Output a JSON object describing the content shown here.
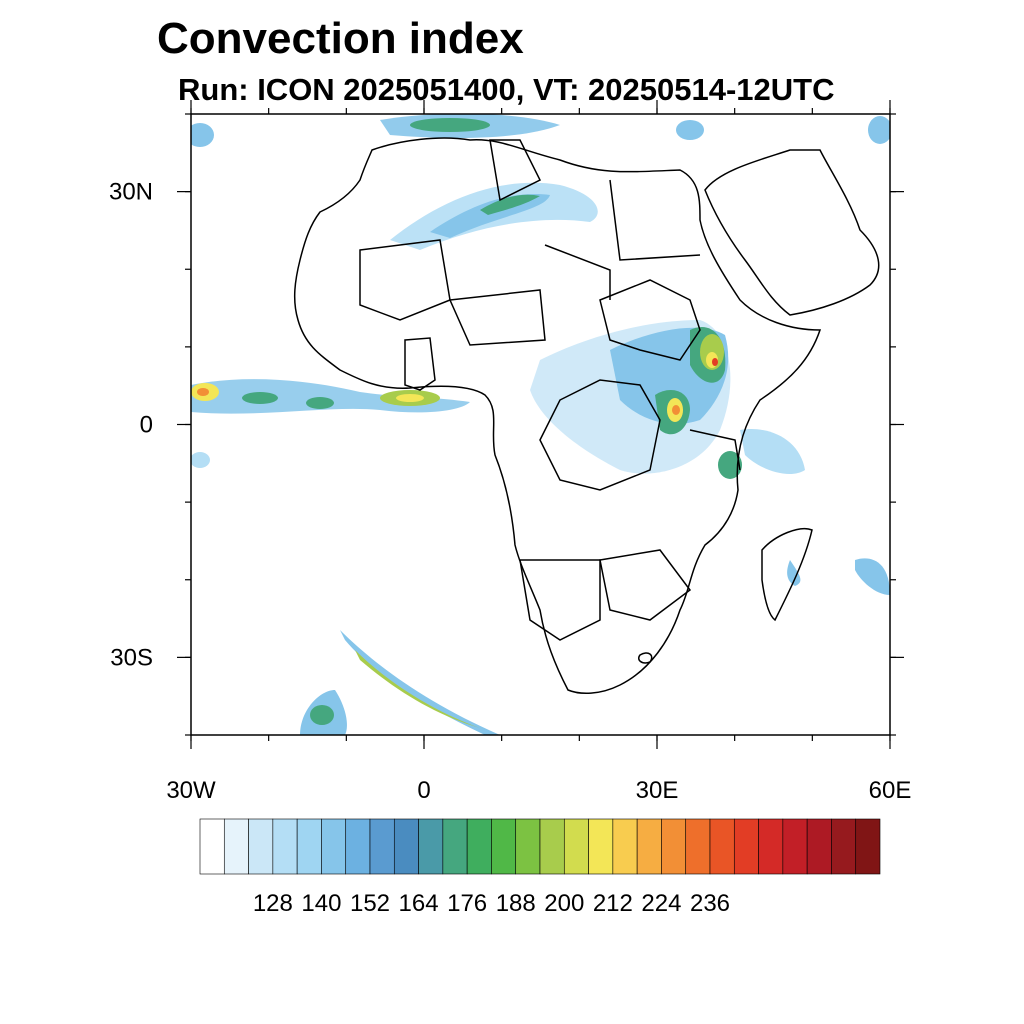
{
  "title": "Convection index",
  "subtitle": "Run: ICON 2025051400,  VT: 20250514-12UTC",
  "map": {
    "lon_range": [
      -30,
      60
    ],
    "lat_range": [
      -40,
      40
    ],
    "lat_ticks": [
      {
        "value": 30,
        "label": "30N"
      },
      {
        "value": 0,
        "label": "0"
      },
      {
        "value": -30,
        "label": "30S"
      }
    ],
    "lon_ticks": [
      {
        "value": -30,
        "label": "30W"
      },
      {
        "value": 0,
        "label": "0"
      },
      {
        "value": 30,
        "label": "30E"
      },
      {
        "value": 60,
        "label": "60E"
      }
    ]
  },
  "colorbar": {
    "colors": [
      "#ffffff",
      "#e6f3fb",
      "#cbe7f7",
      "#b4def5",
      "#9fd5f2",
      "#86c5ea",
      "#6cb1e1",
      "#5a9bd0",
      "#4a8cc0",
      "#4a9aa8",
      "#45a77f",
      "#3fae5e",
      "#50b847",
      "#7cc242",
      "#a8cc4c",
      "#d2dc4e",
      "#f3e657",
      "#f8cc4f",
      "#f6ad42",
      "#f28f36",
      "#ee6f2b",
      "#e95526",
      "#e23d25",
      "#d42a27",
      "#c21f27",
      "#ad1a24",
      "#961a1e",
      "#801515"
    ],
    "labels": [
      "128",
      "140",
      "152",
      "164",
      "176",
      "188",
      "200",
      "212",
      "224",
      "236"
    ]
  }
}
